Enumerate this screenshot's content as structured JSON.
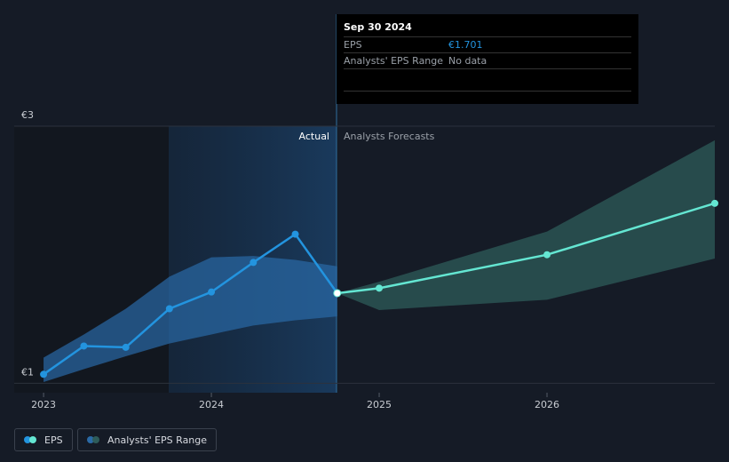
{
  "chart_data": {
    "type": "line",
    "xlim": [
      2022.825,
      2027
    ],
    "xticks": [
      2023,
      2024,
      2025,
      2026
    ],
    "ylim": [
      0.927,
      3.0
    ],
    "yticks": [
      {
        "value": 1,
        "label": "€1"
      },
      {
        "value": 3,
        "label": "€3"
      }
    ],
    "actual_label": "Actual",
    "forecast_label": "Analysts Forecasts",
    "series": [
      {
        "name": "EPS",
        "color": "#2394df",
        "x": [
          2023.0,
          2023.24,
          2023.49,
          2023.75,
          2024.0,
          2024.25,
          2024.5,
          2024.75
        ],
        "values": [
          1.07,
          1.29,
          1.28,
          1.58,
          1.71,
          1.94,
          2.16,
          1.701
        ]
      }
    ],
    "forecast": {
      "color": "#64e6d2",
      "x": [
        2024.75,
        2025,
        2026,
        2027
      ],
      "values": [
        1.701,
        1.74,
        2.0,
        2.4
      ]
    },
    "range": {
      "name": "Analysts' EPS Range",
      "color": "#2a6aa6",
      "forecast_color": "#2e5c5a",
      "x": [
        2023.0,
        2023.24,
        2023.49,
        2023.75,
        2024.0,
        2024.25,
        2024.5,
        2024.75
      ],
      "low": [
        1.01,
        1.11,
        1.21,
        1.31,
        1.38,
        1.45,
        1.49,
        1.52
      ],
      "high": [
        1.2,
        1.38,
        1.58,
        1.83,
        1.98,
        1.99,
        1.96,
        1.91
      ]
    },
    "forecast_range": {
      "x": [
        2024.75,
        2025,
        2026,
        2027
      ],
      "low": [
        1.701,
        1.57,
        1.65,
        1.97
      ],
      "high": [
        1.701,
        1.79,
        2.18,
        2.89
      ]
    }
  },
  "tooltip": {
    "date": "Sep 30 2024",
    "rows": [
      [
        "EPS",
        "€1.701"
      ],
      [
        "Analysts' EPS Range",
        "No data"
      ]
    ]
  }
}
